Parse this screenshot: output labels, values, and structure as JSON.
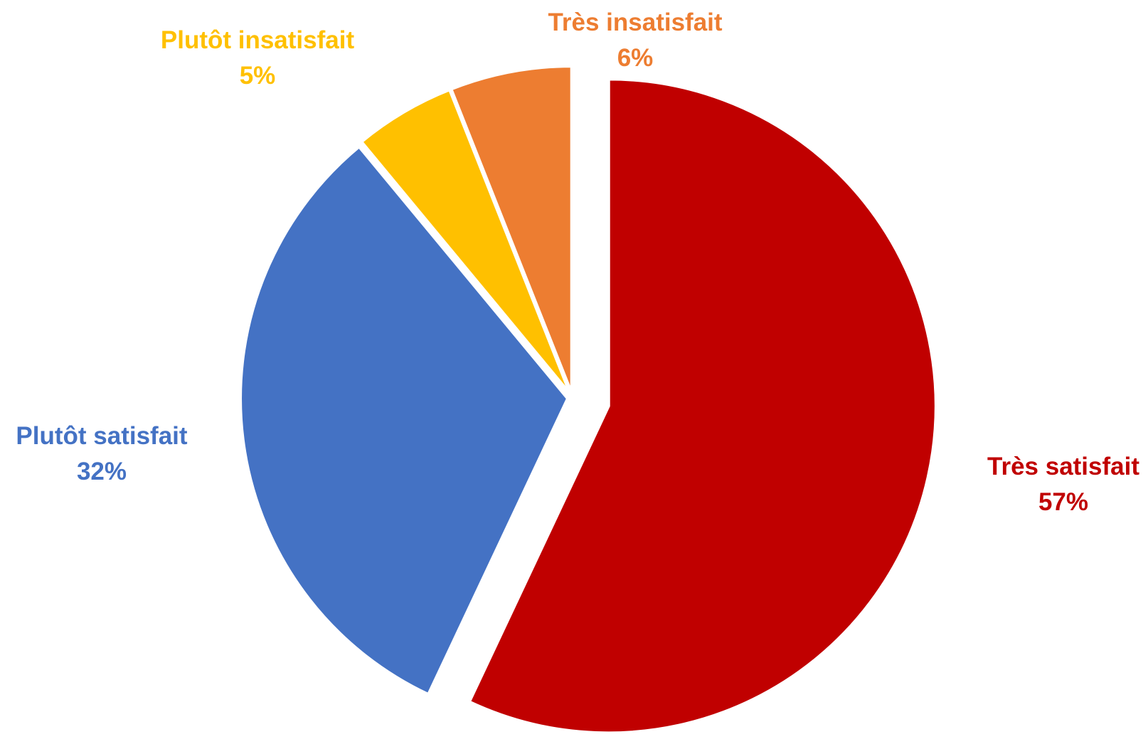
{
  "chart_data": {
    "type": "pie",
    "title": "",
    "start_angle_deg": 0,
    "direction": "clockwise",
    "slices": [
      {
        "label": "Très satisfait",
        "value": 57,
        "display": "57%",
        "color": "#C00000",
        "exploded": true
      },
      {
        "label": "Plutôt satisfait",
        "value": 32,
        "display": "32%",
        "color": "#4472C4",
        "exploded": false
      },
      {
        "label": "Plutôt insatisfait",
        "value": 5,
        "display": "5%",
        "color": "#FFC000",
        "exploded": false
      },
      {
        "label": "Très insatisfait",
        "value": 6,
        "display": "6%",
        "color": "#ED7D31",
        "exploded": false
      }
    ],
    "legend": "none"
  }
}
